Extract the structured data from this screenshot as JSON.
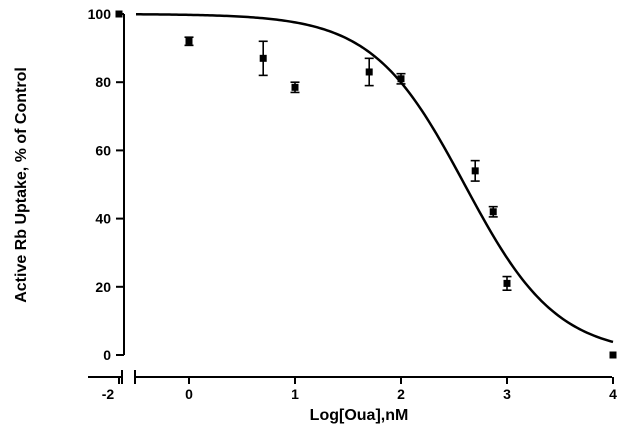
{
  "chart_data": {
    "type": "scatter",
    "title": "",
    "xlabel": "Log[Oua],nM",
    "ylabel": "Active Rb Uptake, % of Control",
    "x_axis_break": true,
    "xlim": [
      -0.5,
      4
    ],
    "xlim_control_segment": [
      -2.3,
      -1.9
    ],
    "ylim": [
      0,
      100
    ],
    "x_ticks": [
      {
        "value": -2,
        "label": "-2"
      },
      {
        "value": 0,
        "label": "0"
      },
      {
        "value": 1,
        "label": "1"
      },
      {
        "value": 2,
        "label": "2"
      },
      {
        "value": 3,
        "label": "3"
      },
      {
        "value": 4,
        "label": "4"
      }
    ],
    "y_ticks": [
      {
        "value": 0,
        "label": "0"
      },
      {
        "value": 20,
        "label": "20"
      },
      {
        "value": 40,
        "label": "40"
      },
      {
        "value": 60,
        "label": "60"
      },
      {
        "value": 80,
        "label": "80"
      },
      {
        "value": 100,
        "label": "100"
      }
    ],
    "points": [
      {
        "x": -2,
        "y": 100,
        "err": 0
      },
      {
        "x": 0,
        "y": 92,
        "err": 1.2
      },
      {
        "x": 0.7,
        "y": 87,
        "err": 5
      },
      {
        "x": 1.0,
        "y": 78.5,
        "err": 1.5
      },
      {
        "x": 1.7,
        "y": 83,
        "err": 4
      },
      {
        "x": 2.0,
        "y": 81,
        "err": 1.5
      },
      {
        "x": 2.7,
        "y": 54,
        "err": 3
      },
      {
        "x": 2.87,
        "y": 42,
        "err": 1.5
      },
      {
        "x": 3.0,
        "y": 21,
        "err": 2
      },
      {
        "x": 4.0,
        "y": 0,
        "err": 0
      }
    ],
    "fit_curve": {
      "model": "sigmoidal dose-response",
      "top": 100,
      "bottom": 0,
      "log_ic50": 2.6,
      "hill_slope": 1.0,
      "x_range": [
        -0.5,
        4
      ]
    },
    "colors": {
      "marks": "#000000",
      "background": "#ffffff"
    },
    "grid": false
  }
}
